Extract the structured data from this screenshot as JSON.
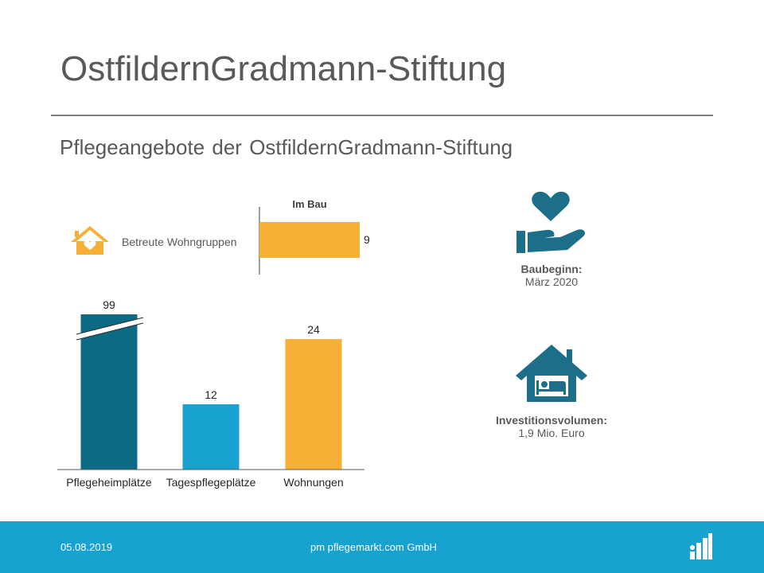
{
  "page": {
    "title": "OstfildernGradmann-Stiftung",
    "subtitle": "Pflegeangebote der OstfildernGradmann-Stiftung"
  },
  "chart_data": [
    {
      "type": "bar",
      "orientation": "horizontal",
      "title": "Im Bau",
      "categories": [
        "Betreute Wohngruppen"
      ],
      "values": [
        9
      ],
      "color": "#f6b035",
      "icon": "house-heart-icon",
      "icon_color": "#f6b035"
    },
    {
      "type": "bar",
      "categories": [
        "Pflegeheimplätze",
        "Tagespflegeplätze",
        "Wohnungen"
      ],
      "values": [
        99,
        12,
        24
      ],
      "colors": [
        "#0d6a84",
        "#17a2cf",
        "#f6b035"
      ],
      "axis_break_on": "Pflegeheimplätze",
      "grid": false
    }
  ],
  "info": {
    "construction": {
      "label": "Baubeginn:",
      "value": "März 2020",
      "icon": "hand-heart-icon"
    },
    "investment": {
      "label": "Investitionsvolumen:",
      "value": "1,9 Mio. Euro",
      "icon": "house-bed-icon"
    },
    "icon_color": "#1c6e89"
  },
  "footer": {
    "date": "05.08.2019",
    "company": "pm pflegemarkt.com GmbH",
    "logo": "pflegemarkt-logo"
  }
}
